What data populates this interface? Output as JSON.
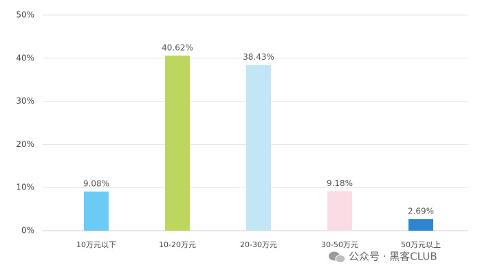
{
  "chart_data": {
    "type": "bar",
    "categories": [
      "10万元以下",
      "10-20万元",
      "20-30万元",
      "30-50万元",
      "50万元以上"
    ],
    "values": [
      9.08,
      40.62,
      38.43,
      9.18,
      2.69
    ],
    "value_labels": [
      "9.08%",
      "40.62%",
      "38.43%",
      "9.18%",
      "2.69%"
    ],
    "colors": [
      "#6ccbf5",
      "#bcd65e",
      "#c3e6f7",
      "#fadce4",
      "#2e86d1"
    ],
    "ylim": [
      0,
      50
    ],
    "yticks": [
      {
        "value": 0,
        "label": "0%"
      },
      {
        "value": 10,
        "label": "10%"
      },
      {
        "value": 20,
        "label": "20%"
      },
      {
        "value": 30,
        "label": "30%"
      },
      {
        "value": 40,
        "label": "40%"
      },
      {
        "value": 50,
        "label": "50%"
      }
    ],
    "grid": true,
    "watermark": "公众号 · 黑客CLUB"
  }
}
